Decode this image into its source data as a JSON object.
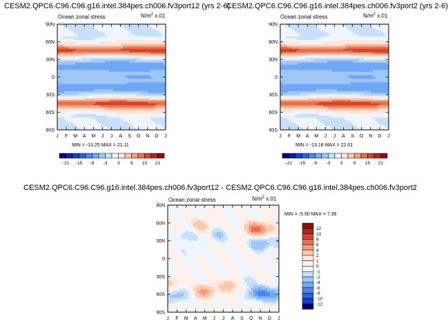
{
  "panels": [
    {
      "id": "p1",
      "title": "CESM2.QPC6.C96.C96.g16.intel.384pes.ch006.fv3port12 (yrs 2-6)",
      "left_label": "Ocean zonal stress",
      "right_label_base": "N/m",
      "right_label_sup": "2",
      "right_label_tail": " x.01",
      "minmax": "MIN = -13.25 MAX = 21.11",
      "field": "mean"
    },
    {
      "id": "p2",
      "title": "CESM2.QPC6.C96.C96.g16.intel.384pes.ch006.fv3port2 (yrs 2-6)",
      "left_label": "Ocean zonal stress",
      "right_label_base": "N/m",
      "right_label_sup": "2",
      "right_label_tail": " x.01",
      "minmax": "MIN = -13.18 MAX = 22.01",
      "field": "mean"
    },
    {
      "id": "p3",
      "title": "CESM2.QPC6.C96.C96.g16.intel.384pes.ch006.fv3port12 - CESM2.QPC6.C96.C96.g16.intel.384pes.ch006.fv3port2",
      "left_label": "Ocean zonal stress",
      "right_label_base": "N/m",
      "right_label_sup": "2",
      "right_label_tail": " x.01",
      "minmax": "MIN =  -5.90 MAX =  7.39",
      "field": "diff"
    }
  ],
  "chart_data": [
    {
      "type": "heatmap",
      "title": "CESM2.QPC6.C96.C96.g16.intel.384pes.ch006.fv3port12 (yrs 2-6)",
      "variable": "Ocean zonal stress",
      "units": "N/m2 x.01",
      "x_ticks": [
        "J",
        "F",
        "M",
        "A",
        "M",
        "J",
        "J",
        "A",
        "S",
        "O",
        "N",
        "D",
        "J"
      ],
      "y_ticks": [
        "90N",
        "60N",
        "30N",
        "0",
        "30S",
        "60S",
        "90S"
      ],
      "ylim": [
        -90,
        90
      ],
      "zonal_profile": {
        "lat": [
          -90,
          -75,
          -65,
          -55,
          -45,
          -35,
          -25,
          -15,
          -7,
          0,
          7,
          15,
          25,
          35,
          45,
          55,
          65,
          75,
          90
        ],
        "value": [
          0,
          0,
          1,
          6,
          17,
          3,
          -6,
          -8,
          -4,
          -6,
          -4,
          -8,
          -6,
          3,
          17,
          6,
          1,
          0,
          0
        ]
      },
      "min": -13.25,
      "max": 21.11
    },
    {
      "type": "heatmap",
      "title": "CESM2.QPC6.C96.C96.g16.intel.384pes.ch006.fv3port2 (yrs 2-6)",
      "variable": "Ocean zonal stress",
      "units": "N/m2 x.01",
      "x_ticks": [
        "J",
        "F",
        "M",
        "A",
        "M",
        "J",
        "J",
        "A",
        "S",
        "O",
        "N",
        "D",
        "J"
      ],
      "y_ticks": [
        "90N",
        "60N",
        "30N",
        "0",
        "30S",
        "60S",
        "90S"
      ],
      "ylim": [
        -90,
        90
      ],
      "zonal_profile": {
        "lat": [
          -90,
          -75,
          -65,
          -55,
          -45,
          -35,
          -25,
          -15,
          -7,
          0,
          7,
          15,
          25,
          35,
          45,
          55,
          65,
          75,
          90
        ],
        "value": [
          0,
          0,
          1,
          6,
          17,
          3,
          -6,
          -8,
          -4,
          -6,
          -4,
          -8,
          -6,
          3,
          17,
          6,
          1,
          0,
          0
        ]
      },
      "min": -13.18,
      "max": 22.01
    },
    {
      "type": "heatmap",
      "title": "CESM2.QPC6.C96.C96.g16.intel.384pes.ch006.fv3port12 - CESM2.QPC6.C96.C96.g16.intel.384pes.ch006.fv3port2",
      "variable": "Ocean zonal stress",
      "units": "N/m2 x.01",
      "x_ticks": [
        "J",
        "F",
        "M",
        "A",
        "M",
        "J",
        "J",
        "A",
        "S",
        "O",
        "N",
        "D",
        "J"
      ],
      "y_ticks": [
        "90N",
        "60N",
        "30N",
        "0",
        "30S",
        "60S",
        "90S"
      ],
      "ylim": [
        -90,
        90
      ],
      "anomaly_blobs": [
        {
          "month": 9.5,
          "lat": 50,
          "value": 7
        },
        {
          "month": 3.5,
          "lat": 55,
          "value": 3
        },
        {
          "month": 5.5,
          "lat": 40,
          "value": -2
        },
        {
          "month": 10.0,
          "lat": 25,
          "value": -4
        },
        {
          "month": 11.0,
          "lat": 48,
          "value": 2
        },
        {
          "month": 2.0,
          "lat": 38,
          "value": -2
        },
        {
          "month": 4.0,
          "lat": -55,
          "value": 5
        },
        {
          "month": 6.8,
          "lat": -45,
          "value": 4
        },
        {
          "month": 9.8,
          "lat": -58,
          "value": -6
        },
        {
          "month": 11.5,
          "lat": -60,
          "value": -5
        },
        {
          "month": 1.0,
          "lat": -62,
          "value": -3
        },
        {
          "month": 8.0,
          "lat": -40,
          "value": -2
        },
        {
          "month": 0.5,
          "lat": -40,
          "value": 2
        },
        {
          "month": 2.5,
          "lat": 15,
          "value": -1
        },
        {
          "month": 12.5,
          "lat": 30,
          "value": -2
        }
      ],
      "min": -5.9,
      "max": 7.39
    }
  ],
  "colorbar_top": {
    "labels": [
      "-21",
      "-15",
      "-9",
      "-3",
      "3",
      "9",
      "15",
      "21"
    ],
    "levels": [
      -24,
      -21,
      -18,
      -15,
      -12,
      -9,
      -6,
      -3,
      0,
      3,
      6,
      9,
      12,
      15,
      18,
      21,
      24
    ],
    "colors": [
      "#00007a",
      "#0b21a8",
      "#1340cf",
      "#2663e6",
      "#4588ef",
      "#6fa8f4",
      "#9ec7f8",
      "#c8e0fb",
      "#eef5fd",
      "#fde7dc",
      "#fbc7ae",
      "#f59d7a",
      "#ea6f4b",
      "#d4462b",
      "#b42418",
      "#8e0d0b"
    ]
  },
  "colorbar_diff": {
    "labels": [
      "12",
      "10",
      "8",
      "6",
      "4",
      "2",
      "1",
      "0",
      "-1",
      "-2",
      "-4",
      "-6",
      "-8",
      "-10",
      "-12"
    ],
    "colors": [
      "#8e0d0b",
      "#b42418",
      "#d4462b",
      "#ea6f4b",
      "#f59d7a",
      "#fbc7ae",
      "#fde7dc",
      "#fdf1ea",
      "#eef5fd",
      "#c8e0fb",
      "#9ec7f8",
      "#6fa8f4",
      "#4588ef",
      "#2663e6",
      "#1340cf",
      "#00007a"
    ]
  }
}
